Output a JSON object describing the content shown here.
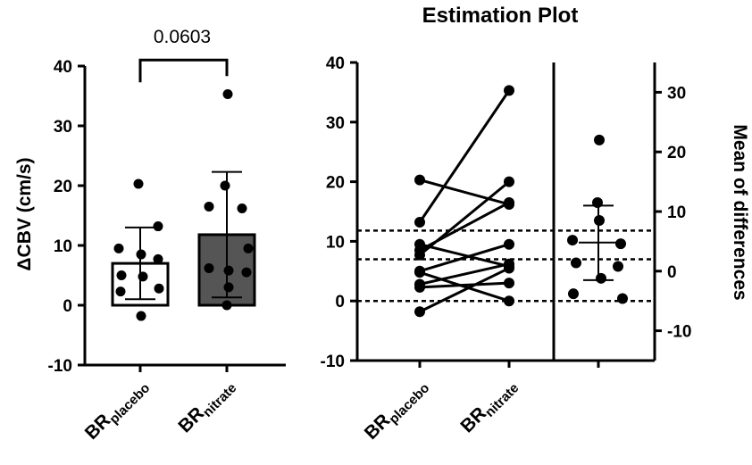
{
  "chart_data": [
    {
      "type": "bar",
      "ylabel": "ΔCBV (cm/s)",
      "ylim": [
        -10,
        40
      ],
      "yticks": [
        "-10",
        "0",
        "10",
        "20",
        "30",
        "40"
      ],
      "categories": [
        {
          "base": "BR",
          "sub": "placebo"
        },
        {
          "base": "BR",
          "sub": "nitrate"
        }
      ],
      "bars": [
        {
          "name": "BR placebo",
          "mean": 7.0,
          "sd_low": 1.0,
          "sd_high": 13.0,
          "fill": "#ffffff"
        },
        {
          "name": "BR nitrate",
          "mean": 11.8,
          "sd_low": 1.3,
          "sd_high": 22.3,
          "fill": "#555555"
        }
      ],
      "points": [
        [
          20.3,
          13.2,
          9.5,
          8.5,
          7.7,
          5.0,
          4.8,
          2.8,
          2.3,
          -1.8
        ],
        [
          35.3,
          20.0,
          16.5,
          16.2,
          9.5,
          6.2,
          5.8,
          5.5,
          3.0,
          0.0
        ]
      ],
      "significance": {
        "label": "0.0603",
        "y": 41
      }
    },
    {
      "type": "scatter",
      "title": "Estimation Plot",
      "ylim_left": [
        -10,
        40
      ],
      "yticks_left": [
        "-10",
        "0",
        "10",
        "20",
        "30",
        "40"
      ],
      "ylim_right": [
        -15,
        35
      ],
      "yticks_right": [
        "-10",
        "0",
        "10",
        "20",
        "30"
      ],
      "ylabel_right": "Mean of differences",
      "categories": [
        {
          "base": "BR",
          "sub": "placebo"
        },
        {
          "base": "BR",
          "sub": "nitrate"
        }
      ],
      "pairs": [
        [
          20.3,
          16.2
        ],
        [
          13.2,
          35.3
        ],
        [
          9.5,
          5.8
        ],
        [
          8.5,
          16.5
        ],
        [
          7.7,
          20.0
        ],
        [
          5.0,
          9.5
        ],
        [
          4.8,
          0.0
        ],
        [
          2.8,
          6.2
        ],
        [
          2.3,
          3.0
        ],
        [
          -1.8,
          5.5
        ]
      ],
      "reference_lines_left": [
        0.0,
        7.0,
        11.8
      ],
      "differences": [
        22.0,
        11.5,
        8.5,
        5.2,
        4.6,
        1.4,
        0.8,
        -1.2,
        -3.8,
        -4.6
      ],
      "mean_difference": 4.8,
      "ci": [
        -1.5,
        11.0
      ]
    }
  ]
}
